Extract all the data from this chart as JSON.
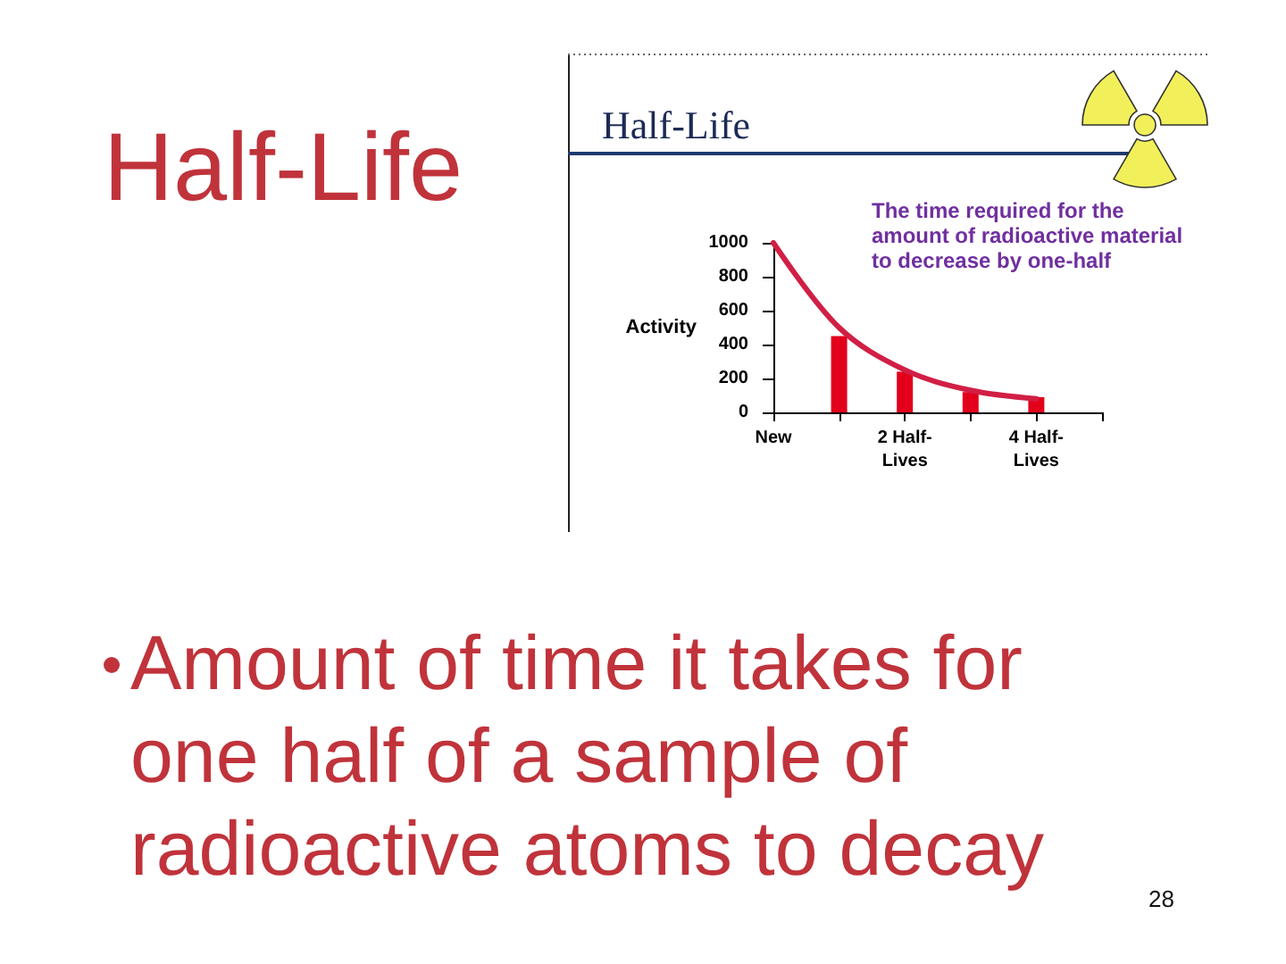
{
  "chart_data": {
    "type": "line",
    "title": "Half-Life",
    "subtitle": "Half-Life",
    "ylabel": "Activity",
    "categories": [
      "New",
      null,
      "2 Half-Lives",
      null,
      "4 Half-Lives",
      null
    ],
    "ylim": [
      0,
      1000
    ],
    "yticks": [
      0,
      200,
      400,
      600,
      800,
      1000
    ],
    "series": [
      {
        "type": "line",
        "color": "#d11f45",
        "values": [
          1000,
          500,
          250,
          130,
          80,
          null
        ]
      },
      {
        "type": "bar",
        "color": "#e3001b",
        "values": [
          null,
          450,
          240,
          120,
          90,
          null
        ]
      }
    ],
    "marker": "none",
    "annotations": [
      "The time required for the amount of radioactive material to decrease by one-half",
      "Amount of time it takes for one half of a sample of radioactive atoms to decay",
      "28"
    ]
  }
}
